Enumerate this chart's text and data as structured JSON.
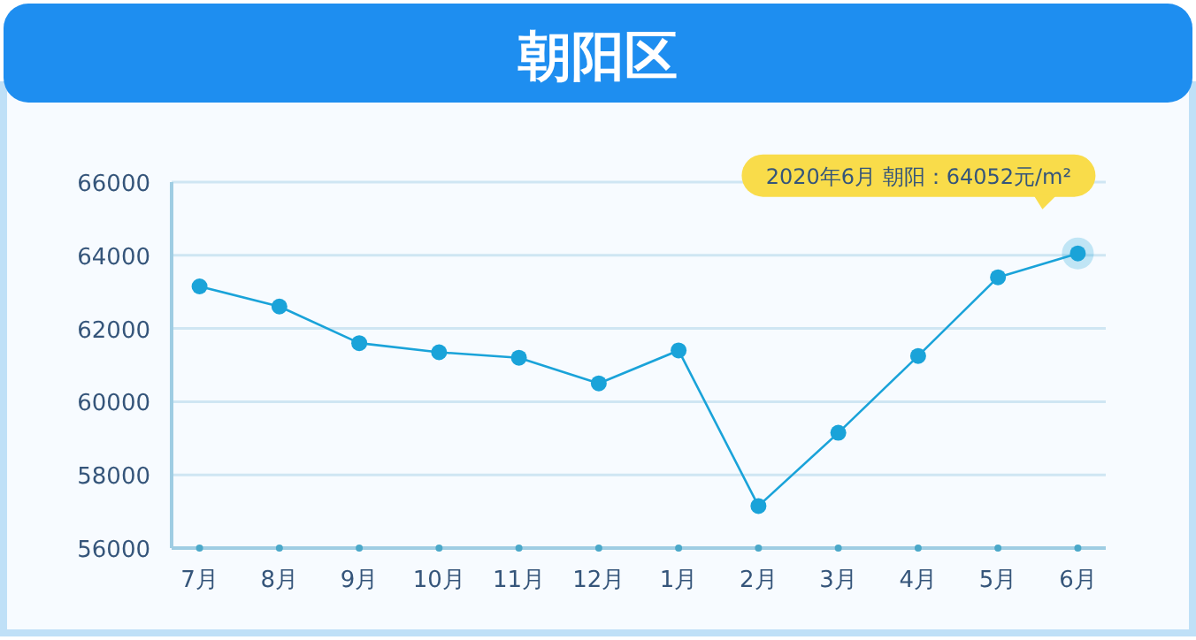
{
  "chart_data": {
    "type": "line",
    "title": "朝阳区",
    "categories": [
      "7月",
      "8月",
      "9月",
      "10月",
      "11月",
      "12月",
      "1月",
      "2月",
      "3月",
      "4月",
      "5月",
      "6月"
    ],
    "series": [
      {
        "color": "#1aa3d9",
        "values": [
          63150,
          62600,
          61600,
          61350,
          61200,
          60500,
          61400,
          57150,
          59150,
          61250,
          63400,
          64052
        ]
      }
    ],
    "ylim": [
      56000,
      66000
    ],
    "yticks": [
      56000,
      58000,
      60000,
      62000,
      64000,
      66000
    ],
    "grid": "y",
    "marker": "circle",
    "line_style": "solid",
    "annotations": [
      "2020年6月 朝阳：64052元/m²"
    ]
  }
}
